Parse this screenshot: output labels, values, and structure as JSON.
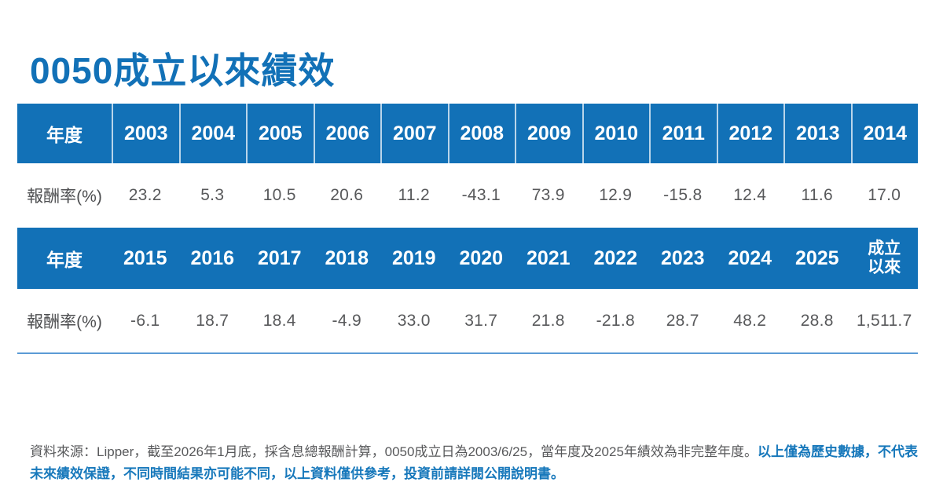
{
  "title": "0050成立以來績效",
  "table1": {
    "year_label": "年度",
    "years": [
      "2003",
      "2004",
      "2005",
      "2006",
      "2007",
      "2008",
      "2009",
      "2010",
      "2011",
      "2012",
      "2013",
      "2014"
    ],
    "return_label": "報酬率(%)",
    "returns": [
      "23.2",
      "5.3",
      "10.5",
      "20.6",
      "11.2",
      "-43.1",
      "73.9",
      "12.9",
      "-15.8",
      "12.4",
      "11.6",
      "17.0"
    ]
  },
  "table2": {
    "year_label": "年度",
    "years": [
      "2015",
      "2016",
      "2017",
      "2018",
      "2019",
      "2020",
      "2021",
      "2022",
      "2023",
      "2024",
      "2025"
    ],
    "inception_label": "成立\n以來",
    "return_label": "報酬率(%)",
    "returns": [
      "-6.1",
      "18.7",
      "18.4",
      "-4.9",
      "33.0",
      "31.7",
      "21.8",
      "-21.8",
      "28.7",
      "48.2",
      "28.8",
      "1,511.7"
    ]
  },
  "footnote": {
    "source": "資料來源：Lipper，截至2026年1月底，採含息總報酬計算，0050成立日為2003/6/25，當年度及2025年績效為非完整年度。",
    "disclaimer": "以上僅為歷史數據，不代表未來績效保證，不同時間結果亦可能不同，以上資料僅供參考，投資前請詳閱公開說明書。"
  },
  "colors": {
    "header_blue": "#1271b7",
    "title_blue": "#1271b7",
    "disclaimer_blue": "#1778bb",
    "text_gray": "#58595b",
    "header_separator": "#b9d5ea",
    "bottom_divider_blue": "#5b9bd5"
  },
  "chart_data": {
    "type": "table",
    "title": "0050成立以來績效",
    "row_header": "年度",
    "value_row_label": "報酬率(%)",
    "categories": [
      "2003",
      "2004",
      "2005",
      "2006",
      "2007",
      "2008",
      "2009",
      "2010",
      "2011",
      "2012",
      "2013",
      "2014",
      "2015",
      "2016",
      "2017",
      "2018",
      "2019",
      "2020",
      "2021",
      "2022",
      "2023",
      "2024",
      "2025",
      "成立以來"
    ],
    "series": [
      {
        "name": "報酬率(%)",
        "values": [
          23.2,
          5.3,
          10.5,
          20.6,
          11.2,
          -43.1,
          73.9,
          12.9,
          -15.8,
          12.4,
          11.6,
          17.0,
          -6.1,
          18.7,
          18.4,
          -4.9,
          33.0,
          31.7,
          21.8,
          -21.8,
          28.7,
          48.2,
          28.8,
          1511.7
        ]
      }
    ]
  }
}
